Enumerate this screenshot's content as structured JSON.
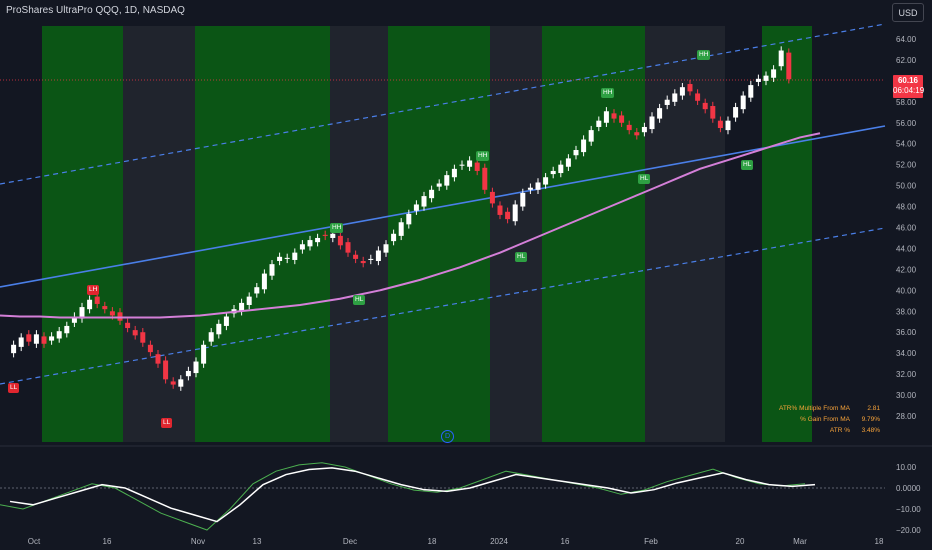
{
  "header": {
    "symbol_title": "ProShares UltraPro QQQ, 1D, NASDAQ",
    "currency_button": "USD"
  },
  "last_price": {
    "value": "60.16",
    "countdown": "06:04:19"
  },
  "price_axis": {
    "labels": [
      "64.00",
      "62.00",
      "60.00",
      "58.00",
      "56.00",
      "54.00",
      "52.00",
      "50.00",
      "48.00",
      "46.00",
      "44.00",
      "42.00",
      "40.00",
      "38.00",
      "36.00",
      "34.00",
      "32.00",
      "30.00",
      "28.00"
    ]
  },
  "oscillator_axis": {
    "labels": [
      "10.00",
      "0.0000",
      "−10.00",
      "−20.00"
    ]
  },
  "time_axis": {
    "labels": [
      "Oct",
      "16",
      "Nov",
      "13",
      "Dec",
      "18",
      "2024",
      "16",
      "Feb",
      "20",
      "Mar",
      "18"
    ]
  },
  "stats_table": [
    {
      "label": "ATR% Multiple From MA",
      "value": "2.81"
    },
    {
      "label": "% Gain From MA",
      "value": "9.79%"
    },
    {
      "label": "ATR %",
      "value": "3.48%"
    }
  ],
  "event_marker": "D",
  "signals": [
    {
      "text": "LL",
      "color": "red"
    },
    {
      "text": "LH",
      "color": "red"
    },
    {
      "text": "LL",
      "color": "red"
    },
    {
      "text": "HH",
      "color": "green"
    },
    {
      "text": "HL",
      "color": "green"
    },
    {
      "text": "HH",
      "color": "green"
    },
    {
      "text": "HL",
      "color": "green"
    },
    {
      "text": "HH",
      "color": "green"
    },
    {
      "text": "HL",
      "color": "green"
    },
    {
      "text": "HH",
      "color": "green"
    },
    {
      "text": "HL",
      "color": "green"
    }
  ],
  "colors": {
    "background": "#131722",
    "up": "#ffffff",
    "down": "#f23645",
    "trendline": "#4a7fe8",
    "ma": "#d47fd8",
    "band_fill": "#0a6b12"
  },
  "chart_data": {
    "type": "candlestick",
    "interval": "1D",
    "ylim": [
      28,
      65
    ],
    "last_close": 60.16,
    "closes": [
      34.2,
      34.8,
      35.5,
      35.1,
      35.8,
      34.9,
      35.6,
      36.1,
      36.6,
      37.5,
      38.4,
      39.1,
      38.7,
      38.2,
      37.6,
      37.1,
      36.4,
      35.7,
      35.0,
      34.1,
      33.0,
      31.5,
      31.0,
      31.5,
      32.3,
      33.2,
      34.8,
      36.0,
      36.8,
      37.5,
      38.2,
      38.8,
      39.4,
      40.3,
      41.6,
      42.5,
      43.2,
      43.1,
      43.6,
      44.4,
      44.8,
      45.0,
      45.2,
      45.4,
      44.3,
      43.6,
      43.0,
      42.6,
      43.0,
      43.8,
      44.4,
      45.4,
      46.5,
      47.3,
      48.2,
      49.0,
      49.6,
      50.2,
      51.0,
      51.6,
      52.0,
      52.4,
      51.4,
      49.6,
      48.3,
      47.2,
      46.8,
      48.2,
      49.3,
      49.8,
      50.3,
      50.8,
      51.4,
      52.0,
      52.6,
      53.4,
      54.4,
      55.3,
      56.2,
      57.1,
      56.4,
      56.0,
      55.3,
      54.8,
      55.6,
      56.6,
      57.4,
      58.2,
      58.8,
      59.4,
      59.0,
      58.1,
      57.3,
      56.4,
      55.5,
      56.2,
      57.5,
      58.6,
      59.6,
      60.2,
      60.5,
      61.1,
      62.9,
      60.16
    ],
    "moving_average": [
      37.6,
      37.5,
      37.5,
      37.4,
      37.4,
      37.4,
      37.4,
      37.4,
      37.4,
      37.5,
      37.6,
      37.8,
      38.0,
      38.2,
      38.4,
      38.6,
      38.9,
      39.2,
      39.6,
      40.0,
      40.5,
      41.0,
      41.6,
      42.2,
      42.9,
      43.6,
      44.4,
      45.2,
      46.0,
      46.8,
      47.6,
      48.4,
      49.2,
      50.0,
      50.8,
      51.6,
      52.2,
      52.8,
      53.4,
      54.0,
      54.6,
      55.0
    ],
    "oscillator": {
      "ylim": [
        -22,
        14
      ],
      "values": [
        -8,
        -10,
        -6,
        -2,
        2,
        0,
        -6,
        -12,
        -16,
        -20,
        -10,
        2,
        8,
        11,
        12,
        10,
        6,
        2,
        -1,
        -2,
        0,
        4,
        8,
        6,
        4,
        2,
        0,
        -3,
        -1,
        3,
        6,
        9,
        5,
        2,
        1,
        2
      ]
    }
  }
}
